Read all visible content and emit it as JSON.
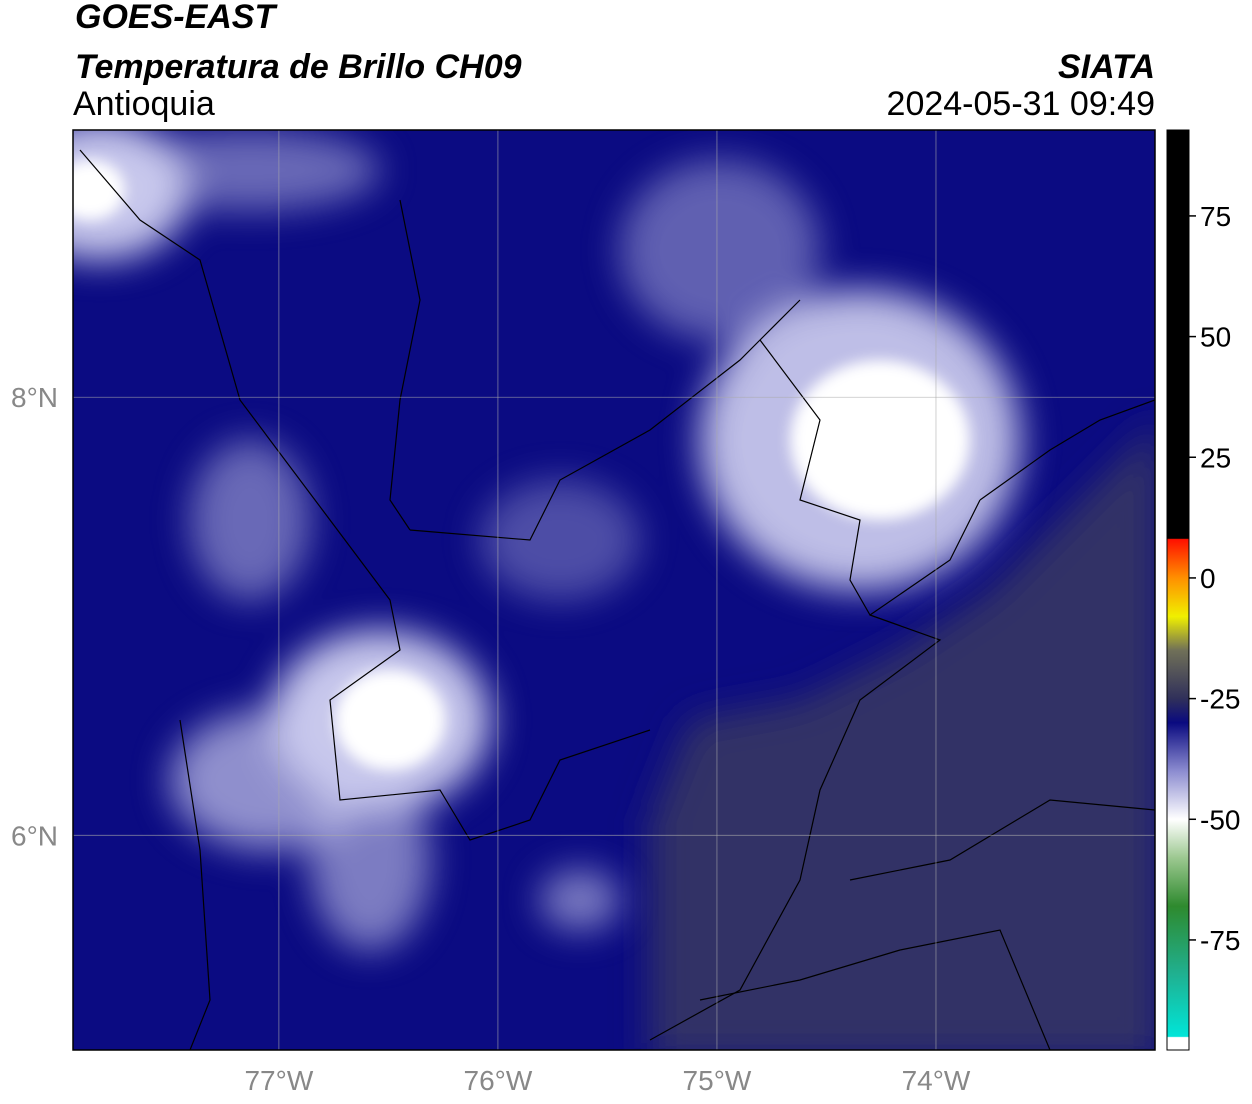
{
  "header": {
    "title": "GOES-EAST",
    "subtitle": "Temperatura de Brillo CH09",
    "region": "Antioquia",
    "source": "SIATA",
    "datetime": "2024-05-31 09:49"
  },
  "map": {
    "xlim": [
      -77.94,
      -73.0
    ],
    "ylim": [
      5.02,
      9.22
    ],
    "xticks": [
      {
        "value": -77,
        "label": "77°W"
      },
      {
        "value": -76,
        "label": "76°W"
      },
      {
        "value": -75,
        "label": "75°W"
      },
      {
        "value": -74,
        "label": "74°W"
      }
    ],
    "yticks": [
      {
        "value": 8,
        "label": "8°N"
      },
      {
        "value": 6,
        "label": "6°N"
      }
    ],
    "grid": true
  },
  "colorbar": {
    "range": [
      -97.8,
      92.8
    ],
    "ticks": [
      75,
      50,
      25,
      0,
      -25,
      -50,
      -75
    ],
    "stops": [
      {
        "value": -97.8,
        "color": "#ffffff"
      },
      {
        "value": -95.2,
        "color": "#ffffff"
      },
      {
        "value": -95,
        "color": "#00e5d8"
      },
      {
        "value": -82,
        "color": "#20b090"
      },
      {
        "value": -68,
        "color": "#2e8a2e"
      },
      {
        "value": -58,
        "color": "#9cc890"
      },
      {
        "value": -50,
        "color": "#ffffff"
      },
      {
        "value": -40,
        "color": "#8c8cd0"
      },
      {
        "value": -30,
        "color": "#0a0a80"
      },
      {
        "value": -25,
        "color": "#30305a"
      },
      {
        "value": -15,
        "color": "#707058"
      },
      {
        "value": -8,
        "color": "#f0f000"
      },
      {
        "value": 0,
        "color": "#ff9000"
      },
      {
        "value": 8,
        "color": "#ff1000"
      },
      {
        "value": 8.2,
        "color": "#000000"
      },
      {
        "value": 92.8,
        "color": "#000000"
      }
    ]
  }
}
